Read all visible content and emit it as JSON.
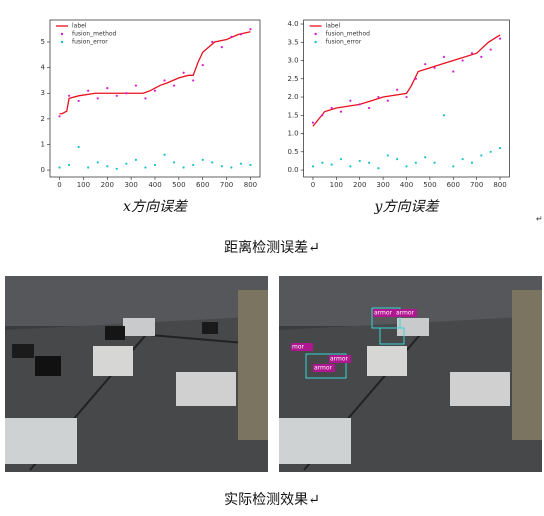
{
  "chart_data": [
    {
      "type": "line",
      "xlabel": "x方向误差",
      "xlim": [
        -40,
        840
      ],
      "ylim": [
        -0.27,
        5.86
      ],
      "xticks": [
        0,
        100,
        200,
        300,
        400,
        500,
        600,
        700,
        800
      ],
      "yticks": [
        0,
        1,
        2,
        3,
        4,
        5
      ],
      "legend": "upper left",
      "series": [
        {
          "name": "label",
          "color": "#e8101e",
          "kind": "line",
          "x": [
            0,
            10,
            30,
            40,
            80,
            150,
            250,
            300,
            350,
            380,
            420,
            450,
            500,
            540,
            560,
            580,
            600,
            650,
            700,
            750,
            800
          ],
          "values": [
            2.2,
            2.2,
            2.3,
            2.8,
            2.9,
            3.0,
            3.0,
            3.0,
            3.0,
            3.1,
            3.3,
            3.4,
            3.6,
            3.7,
            3.7,
            4.2,
            4.6,
            5.0,
            5.1,
            5.3,
            5.4
          ]
        },
        {
          "name": "fusion_method",
          "color": "#d81bd0",
          "kind": "scatter",
          "x": [
            0,
            40,
            80,
            120,
            160,
            200,
            240,
            280,
            320,
            360,
            400,
            440,
            480,
            520,
            560,
            600,
            640,
            680,
            720,
            760,
            800
          ],
          "values": [
            2.1,
            2.9,
            2.7,
            3.1,
            2.8,
            3.2,
            2.9,
            3.0,
            3.3,
            2.8,
            3.1,
            3.5,
            3.3,
            3.8,
            3.5,
            4.1,
            5.0,
            4.8,
            5.2,
            5.3,
            5.5
          ]
        },
        {
          "name": "fusion_error",
          "color": "#19c2c8",
          "kind": "scatter",
          "x": [
            0,
            40,
            80,
            120,
            160,
            200,
            240,
            280,
            320,
            360,
            400,
            440,
            480,
            520,
            560,
            600,
            640,
            680,
            720,
            760,
            800
          ],
          "values": [
            0.1,
            0.2,
            0.9,
            0.1,
            0.3,
            0.15,
            0.05,
            0.25,
            0.4,
            0.1,
            0.2,
            0.6,
            0.3,
            0.1,
            0.2,
            0.4,
            0.3,
            0.15,
            0.1,
            0.25,
            0.2
          ]
        }
      ]
    },
    {
      "type": "line",
      "xlabel": "y方向误差",
      "xlim": [
        -40,
        840
      ],
      "ylim": [
        -0.19,
        4.11
      ],
      "xticks": [
        0,
        100,
        200,
        300,
        400,
        500,
        600,
        700,
        800
      ],
      "yticks": [
        {
          "value": 0,
          "label": "0.0"
        },
        0.5,
        {
          "value": 1,
          "label": "1.0"
        },
        1.5,
        {
          "value": 2,
          "label": "2.0"
        },
        2.5,
        {
          "value": 3,
          "label": "3.0"
        },
        3.5,
        {
          "value": 4,
          "label": "4.0"
        }
      ],
      "legend": "upper left",
      "series": [
        {
          "name": "label",
          "color": "#e8101e",
          "kind": "line",
          "x": [
            0,
            50,
            100,
            200,
            300,
            400,
            420,
            450,
            500,
            550,
            600,
            700,
            750,
            800
          ],
          "values": [
            1.2,
            1.6,
            1.7,
            1.8,
            2.0,
            2.1,
            2.3,
            2.7,
            2.8,
            2.9,
            3.0,
            3.2,
            3.5,
            3.7
          ]
        },
        {
          "name": "fusion_method",
          "color": "#d81bd0",
          "kind": "scatter",
          "x": [
            0,
            40,
            80,
            120,
            160,
            200,
            240,
            280,
            320,
            360,
            400,
            440,
            480,
            520,
            560,
            600,
            640,
            680,
            720,
            760,
            800
          ],
          "values": [
            1.3,
            1.5,
            1.7,
            1.6,
            1.9,
            1.8,
            1.7,
            2.0,
            1.9,
            2.2,
            2.0,
            2.5,
            2.9,
            2.8,
            3.1,
            2.7,
            3.0,
            3.2,
            3.1,
            3.3,
            3.6
          ]
        },
        {
          "name": "fusion_error",
          "color": "#19c2c8",
          "kind": "scatter",
          "x": [
            0,
            40,
            80,
            120,
            160,
            200,
            240,
            280,
            320,
            360,
            400,
            440,
            480,
            520,
            560,
            600,
            640,
            680,
            720,
            760,
            800
          ],
          "values": [
            0.1,
            0.2,
            0.15,
            0.3,
            0.1,
            0.25,
            0.2,
            0.05,
            0.4,
            0.3,
            0.1,
            0.2,
            0.35,
            0.2,
            1.5,
            0.1,
            0.3,
            0.2,
            0.4,
            0.5,
            0.6
          ]
        }
      ]
    }
  ],
  "paragraph_mark": "↵",
  "captions": {
    "top": "距离检测误差↵",
    "bottom": "实际检测效果↵"
  },
  "detections": [
    "armor",
    "armor",
    "mor",
    "armor",
    "armor"
  ]
}
